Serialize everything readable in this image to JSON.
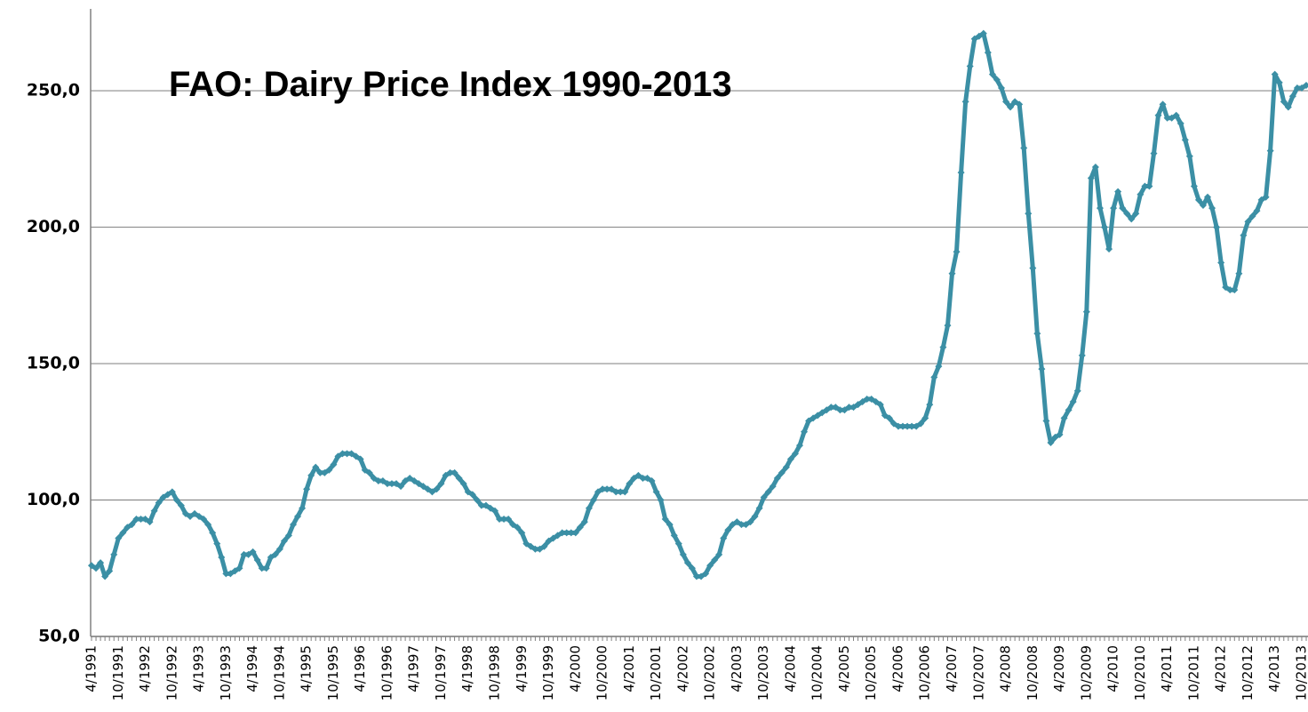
{
  "chart_data": {
    "type": "line",
    "title": "FAO: Dairy Price Index 1990-2013",
    "categories": [
      "4/1991",
      null,
      null,
      null,
      null,
      null,
      "10/1991",
      null,
      null,
      null,
      null,
      null,
      "4/1992",
      null,
      null,
      null,
      null,
      null,
      "10/1992",
      null,
      null,
      null,
      null,
      null,
      "4/1993",
      null,
      null,
      null,
      null,
      null,
      "10/1993",
      null,
      null,
      null,
      null,
      null,
      "4/1994",
      null,
      null,
      null,
      null,
      null,
      "10/1994",
      null,
      null,
      null,
      null,
      null,
      "4/1995",
      null,
      null,
      null,
      null,
      null,
      "10/1995",
      null,
      null,
      null,
      null,
      null,
      "4/1996",
      null,
      null,
      null,
      null,
      null,
      "10/1996",
      null,
      null,
      null,
      null,
      null,
      "4/1997",
      null,
      null,
      null,
      null,
      null,
      "10/1997",
      null,
      null,
      null,
      null,
      null,
      "4/1998",
      null,
      null,
      null,
      null,
      null,
      "10/1998",
      null,
      null,
      null,
      null,
      null,
      "4/1999",
      null,
      null,
      null,
      null,
      null,
      "10/1999",
      null,
      null,
      null,
      null,
      null,
      "4/2000",
      null,
      null,
      null,
      null,
      null,
      "10/2000",
      null,
      null,
      null,
      null,
      null,
      "4/2001",
      null,
      null,
      null,
      null,
      null,
      "10/2001",
      null,
      null,
      null,
      null,
      null,
      "4/2002",
      null,
      null,
      null,
      null,
      null,
      "10/2002",
      null,
      null,
      null,
      null,
      null,
      "4/2003",
      null,
      null,
      null,
      null,
      null,
      "10/2003",
      null,
      null,
      null,
      null,
      null,
      "4/2004",
      null,
      null,
      null,
      null,
      null,
      "10/2004",
      null,
      null,
      null,
      null,
      null,
      "4/2005",
      null,
      null,
      null,
      null,
      null,
      "10/2005",
      null,
      null,
      null,
      null,
      null,
      "4/2006",
      null,
      null,
      null,
      null,
      null,
      "10/2006",
      null,
      null,
      null,
      null,
      null,
      "4/2007",
      null,
      null,
      null,
      null,
      null,
      "10/2007",
      null,
      null,
      null,
      null,
      null,
      "4/2008",
      null,
      null,
      null,
      null,
      null,
      "10/2008",
      null,
      null,
      null,
      null,
      null,
      "4/2009",
      null,
      null,
      null,
      null,
      null,
      "10/2009",
      null,
      null,
      null,
      null,
      null,
      "4/2010",
      null,
      null,
      null,
      null,
      null,
      "10/2010",
      null,
      null,
      null,
      null,
      null,
      "4/2011",
      null,
      null,
      null,
      null,
      null,
      "10/2011",
      null,
      null,
      null,
      null,
      null,
      "4/2012",
      null,
      null,
      null,
      null,
      null,
      "10/2012",
      null,
      null,
      null,
      null,
      null,
      "4/2013",
      null,
      null,
      null,
      null,
      null,
      "10/2013",
      null
    ],
    "values": [
      76,
      75,
      77,
      72,
      74,
      80,
      86,
      88,
      90,
      91,
      93,
      93,
      93,
      92,
      96,
      99,
      101,
      102,
      103,
      100,
      98,
      95,
      94,
      95,
      94,
      93,
      91,
      88,
      84,
      79,
      73,
      73,
      74,
      75,
      80,
      80,
      81,
      78,
      75,
      75,
      79,
      80,
      82,
      85,
      87,
      91,
      94,
      97,
      104,
      109,
      112,
      110,
      110,
      111,
      113,
      116,
      117,
      117,
      117,
      116,
      115,
      111,
      110,
      108,
      107,
      107,
      106,
      106,
      106,
      105,
      107,
      108,
      107,
      106,
      105,
      104,
      103,
      104,
      106,
      109,
      110,
      110,
      108,
      106,
      103,
      102,
      100,
      98,
      98,
      97,
      96,
      93,
      93,
      93,
      91,
      90,
      88,
      84,
      83,
      82,
      82,
      83,
      85,
      86,
      87,
      88,
      88,
      88,
      88,
      90,
      92,
      97,
      100,
      103,
      104,
      104,
      104,
      103,
      103,
      103,
      106,
      108,
      109,
      108,
      108,
      107,
      103,
      100,
      93,
      91,
      87,
      84,
      80,
      77,
      75,
      72,
      72,
      73,
      76,
      78,
      80,
      86,
      89,
      91,
      92,
      91,
      91,
      92,
      94,
      97,
      101,
      103,
      105,
      108,
      110,
      112,
      115,
      117,
      120,
      125,
      129,
      130,
      131,
      132,
      133,
      134,
      134,
      133,
      133,
      134,
      134,
      135,
      136,
      137,
      137,
      136,
      135,
      131,
      130,
      128,
      127,
      127,
      127,
      127,
      127,
      128,
      130,
      135,
      145,
      149,
      156,
      164,
      183,
      191,
      220,
      246,
      259,
      269,
      270,
      271,
      264,
      256,
      254,
      251,
      246,
      244,
      246,
      245,
      229,
      205,
      185,
      161,
      148,
      129,
      121,
      123,
      124,
      130,
      133,
      136,
      140,
      153,
      169,
      218,
      222,
      207,
      200,
      192,
      207,
      213,
      207,
      205,
      203,
      205,
      212,
      215,
      215,
      227,
      241,
      245,
      240,
      240,
      241,
      238,
      232,
      226,
      215,
      210,
      208,
      211,
      207,
      200,
      187,
      178,
      177,
      177,
      183,
      197,
      202,
      204,
      206,
      210,
      211,
      228,
      256,
      253,
      246,
      244,
      248,
      251,
      251,
      252
    ],
    "color": "#3b8fa5",
    "ylim": [
      50,
      280
    ],
    "yticks": [
      {
        "value": 50,
        "label": "50,0"
      },
      {
        "value": 100,
        "label": "100,0"
      },
      {
        "value": 150,
        "label": "150,0"
      },
      {
        "value": 200,
        "label": "200,0"
      },
      {
        "value": 250,
        "label": "250,0"
      }
    ],
    "grid": true
  }
}
